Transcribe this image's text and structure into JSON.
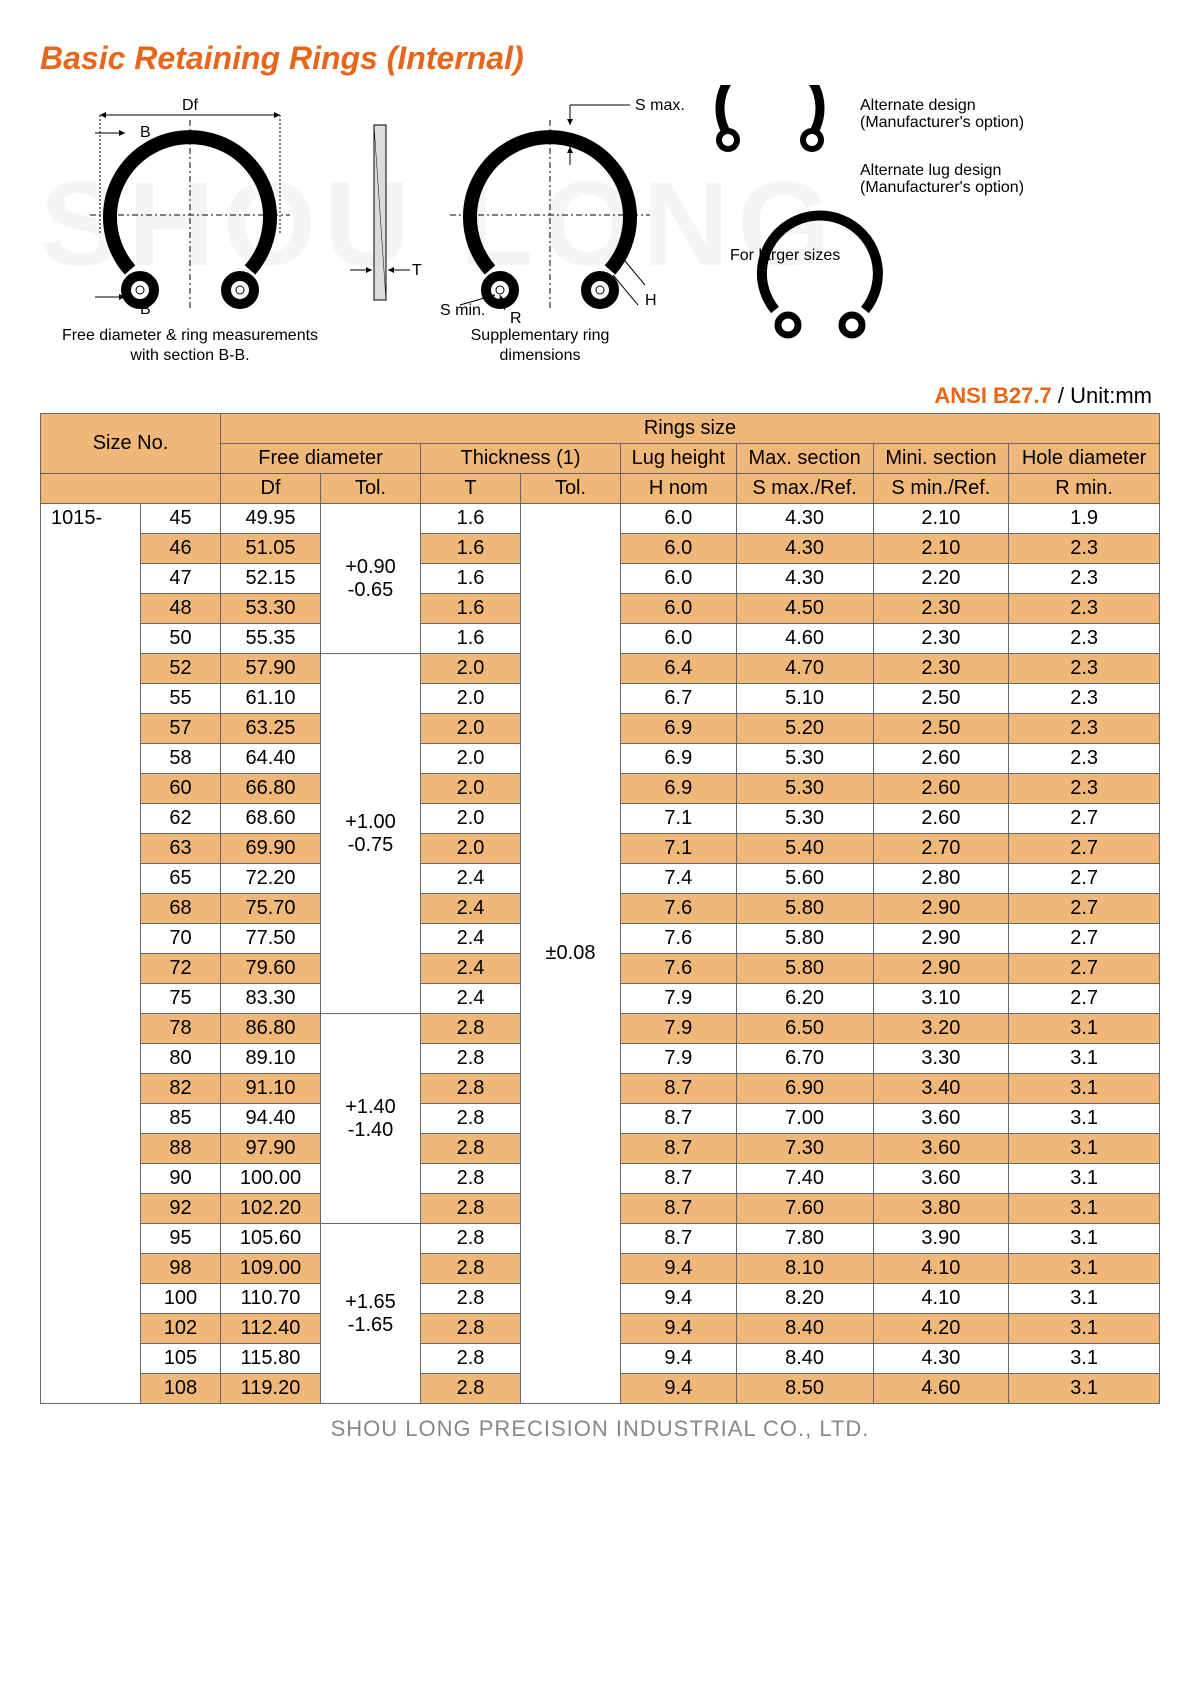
{
  "title": "Basic Retaining Rings (Internal)",
  "watermark": "SHOU LONG",
  "diagram": {
    "labels": {
      "df": "Df",
      "b": "B",
      "t": "T",
      "r": "R",
      "h": "H",
      "smax": "S max.",
      "smin": "S min.",
      "cap1": "Free diameter & ring measurements with section B-B.",
      "cap2": "Supplementary ring dimensions",
      "alt1": "Alternate design (Manufacturer's option)",
      "alt2": "Alternate lug design (Manufacturer's option)",
      "larger": "For larger sizes"
    }
  },
  "standard": "ANSI B27.7",
  "unit": " / Unit:mm",
  "headers": {
    "size_no": "Size No.",
    "rings_size": "Rings size",
    "free_diameter": "Free diameter",
    "thickness": "Thickness (1)",
    "lug_height": "Lug height",
    "max_section": "Max. section",
    "min_section": "Mini. section",
    "hole_diameter": "Hole diameter",
    "df": "Df",
    "tol": "Tol.",
    "t": "T",
    "hnom": "H nom",
    "smax": "S max./Ref.",
    "smin": "S min./Ref.",
    "rmin": "R min."
  },
  "series": "1015-",
  "tol_groups": {
    "g1": "+0.90\n-0.65",
    "g2": "+1.00\n-0.75",
    "g3": "+1.40\n-1.40",
    "g4": "+1.65\n-1.65",
    "thickness": "±0.08"
  },
  "rows": [
    {
      "n": "45",
      "df": "49.95",
      "t": "1.6",
      "h": "6.0",
      "smax": "4.30",
      "smin": "2.10",
      "r": "1.9"
    },
    {
      "n": "46",
      "df": "51.05",
      "t": "1.6",
      "h": "6.0",
      "smax": "4.30",
      "smin": "2.10",
      "r": "2.3"
    },
    {
      "n": "47",
      "df": "52.15",
      "t": "1.6",
      "h": "6.0",
      "smax": "4.30",
      "smin": "2.20",
      "r": "2.3"
    },
    {
      "n": "48",
      "df": "53.30",
      "t": "1.6",
      "h": "6.0",
      "smax": "4.50",
      "smin": "2.30",
      "r": "2.3"
    },
    {
      "n": "50",
      "df": "55.35",
      "t": "1.6",
      "h": "6.0",
      "smax": "4.60",
      "smin": "2.30",
      "r": "2.3"
    },
    {
      "n": "52",
      "df": "57.90",
      "t": "2.0",
      "h": "6.4",
      "smax": "4.70",
      "smin": "2.30",
      "r": "2.3"
    },
    {
      "n": "55",
      "df": "61.10",
      "t": "2.0",
      "h": "6.7",
      "smax": "5.10",
      "smin": "2.50",
      "r": "2.3"
    },
    {
      "n": "57",
      "df": "63.25",
      "t": "2.0",
      "h": "6.9",
      "smax": "5.20",
      "smin": "2.50",
      "r": "2.3"
    },
    {
      "n": "58",
      "df": "64.40",
      "t": "2.0",
      "h": "6.9",
      "smax": "5.30",
      "smin": "2.60",
      "r": "2.3"
    },
    {
      "n": "60",
      "df": "66.80",
      "t": "2.0",
      "h": "6.9",
      "smax": "5.30",
      "smin": "2.60",
      "r": "2.3"
    },
    {
      "n": "62",
      "df": "68.60",
      "t": "2.0",
      "h": "7.1",
      "smax": "5.30",
      "smin": "2.60",
      "r": "2.7"
    },
    {
      "n": "63",
      "df": "69.90",
      "t": "2.0",
      "h": "7.1",
      "smax": "5.40",
      "smin": "2.70",
      "r": "2.7"
    },
    {
      "n": "65",
      "df": "72.20",
      "t": "2.4",
      "h": "7.4",
      "smax": "5.60",
      "smin": "2.80",
      "r": "2.7"
    },
    {
      "n": "68",
      "df": "75.70",
      "t": "2.4",
      "h": "7.6",
      "smax": "5.80",
      "smin": "2.90",
      "r": "2.7"
    },
    {
      "n": "70",
      "df": "77.50",
      "t": "2.4",
      "h": "7.6",
      "smax": "5.80",
      "smin": "2.90",
      "r": "2.7"
    },
    {
      "n": "72",
      "df": "79.60",
      "t": "2.4",
      "h": "7.6",
      "smax": "5.80",
      "smin": "2.90",
      "r": "2.7"
    },
    {
      "n": "75",
      "df": "83.30",
      "t": "2.4",
      "h": "7.9",
      "smax": "6.20",
      "smin": "3.10",
      "r": "2.7"
    },
    {
      "n": "78",
      "df": "86.80",
      "t": "2.8",
      "h": "7.9",
      "smax": "6.50",
      "smin": "3.20",
      "r": "3.1"
    },
    {
      "n": "80",
      "df": "89.10",
      "t": "2.8",
      "h": "7.9",
      "smax": "6.70",
      "smin": "3.30",
      "r": "3.1"
    },
    {
      "n": "82",
      "df": "91.10",
      "t": "2.8",
      "h": "8.7",
      "smax": "6.90",
      "smin": "3.40",
      "r": "3.1"
    },
    {
      "n": "85",
      "df": "94.40",
      "t": "2.8",
      "h": "8.7",
      "smax": "7.00",
      "smin": "3.60",
      "r": "3.1"
    },
    {
      "n": "88",
      "df": "97.90",
      "t": "2.8",
      "h": "8.7",
      "smax": "7.30",
      "smin": "3.60",
      "r": "3.1"
    },
    {
      "n": "90",
      "df": "100.00",
      "t": "2.8",
      "h": "8.7",
      "smax": "7.40",
      "smin": "3.60",
      "r": "3.1"
    },
    {
      "n": "92",
      "df": "102.20",
      "t": "2.8",
      "h": "8.7",
      "smax": "7.60",
      "smin": "3.80",
      "r": "3.1"
    },
    {
      "n": "95",
      "df": "105.60",
      "t": "2.8",
      "h": "8.7",
      "smax": "7.80",
      "smin": "3.90",
      "r": "3.1"
    },
    {
      "n": "98",
      "df": "109.00",
      "t": "2.8",
      "h": "9.4",
      "smax": "8.10",
      "smin": "4.10",
      "r": "3.1"
    },
    {
      "n": "100",
      "df": "110.70",
      "t": "2.8",
      "h": "9.4",
      "smax": "8.20",
      "smin": "4.10",
      "r": "3.1"
    },
    {
      "n": "102",
      "df": "112.40",
      "t": "2.8",
      "h": "9.4",
      "smax": "8.40",
      "smin": "4.20",
      "r": "3.1"
    },
    {
      "n": "105",
      "df": "115.80",
      "t": "2.8",
      "h": "9.4",
      "smax": "8.40",
      "smin": "4.30",
      "r": "3.1"
    },
    {
      "n": "108",
      "df": "119.20",
      "t": "2.8",
      "h": "9.4",
      "smax": "8.50",
      "smin": "4.60",
      "r": "3.1"
    }
  ],
  "footer": "SHOU LONG PRECISION INDUSTRIAL CO., LTD.",
  "colors": {
    "accent": "#e8661a",
    "header_bg": "#f0b878",
    "alt_bg": "#f0b878",
    "border": "#666666",
    "footer": "#888888"
  }
}
